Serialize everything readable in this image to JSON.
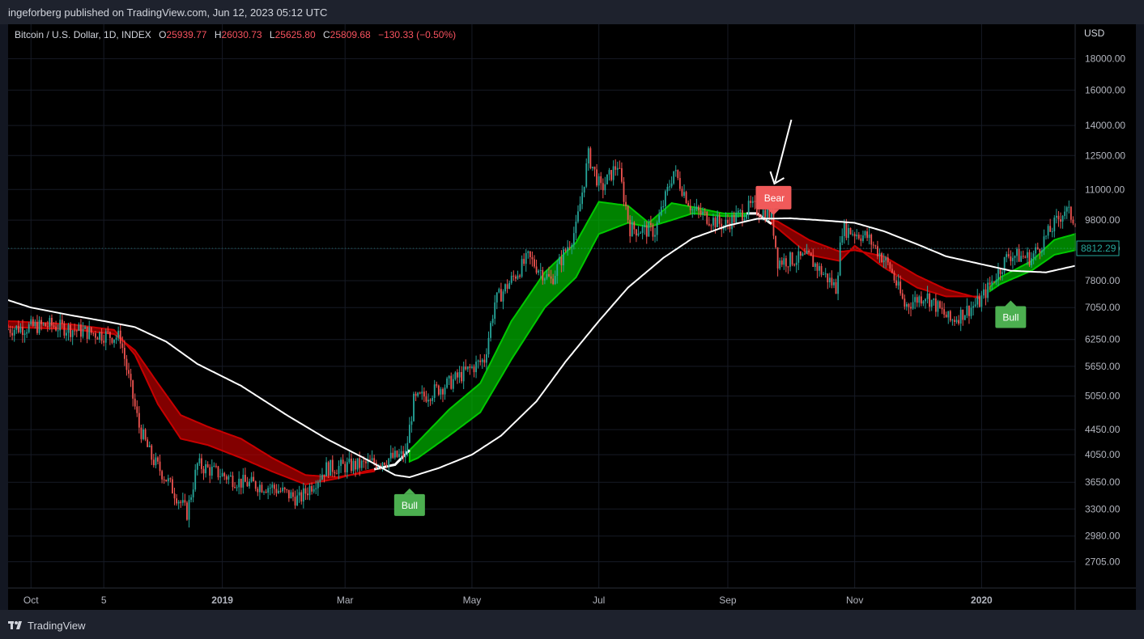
{
  "header": {
    "published": "ingeforberg published on TradingView.com, Jun 12, 2023 05:12 UTC"
  },
  "legend": {
    "symbol": "Bitcoin / U.S. Dollar, 1D, INDEX",
    "o_label": "O",
    "o_value": "25939.77",
    "h_label": "H",
    "h_value": "26030.73",
    "l_label": "L",
    "l_value": "25625.80",
    "c_label": "C",
    "c_value": "25809.68",
    "change": "−130.33 (−0.50%)"
  },
  "footer": {
    "brand": "TradingView"
  },
  "colors": {
    "background": "#000000",
    "up_candle": "#26a69a",
    "down_candle": "#ef5350",
    "bull_ribbon": "#00c800",
    "bear_ribbon": "#c80000",
    "slow_ma": "#ffffff",
    "bull_label": "#4caf50",
    "bear_label": "#f05a5a",
    "last_price": "#26a69a"
  },
  "chart_data": {
    "type": "candlestick",
    "currency": "USD",
    "y_scale": "log",
    "ylim": [
      2450,
      20500
    ],
    "y_ticks": [
      "18000.00",
      "16000.00",
      "14000.00",
      "12500.00",
      "11000.00",
      "9800.00",
      "8800.00",
      "7800.00",
      "7050.00",
      "6250.00",
      "5650.00",
      "5050.00",
      "4450.00",
      "4050.00",
      "3650.00",
      "3300.00",
      "2980.00",
      "2705.00"
    ],
    "x_range": [
      "2018-09-20",
      "2020-02-15"
    ],
    "x_ticks": [
      {
        "label": "Oct",
        "date": "2018-10-01",
        "bold": false
      },
      {
        "label": "5",
        "date": "2018-11-05",
        "bold": false
      },
      {
        "label": "2019",
        "date": "2019-01-01",
        "bold": true
      },
      {
        "label": "Mar",
        "date": "2019-03-01",
        "bold": false
      },
      {
        "label": "May",
        "date": "2019-05-01",
        "bold": false
      },
      {
        "label": "Jul",
        "date": "2019-07-01",
        "bold": false
      },
      {
        "label": "Sep",
        "date": "2019-09-01",
        "bold": false
      },
      {
        "label": "Nov",
        "date": "2019-11-01",
        "bold": false
      },
      {
        "label": "2020",
        "date": "2020-01-01",
        "bold": true
      }
    ],
    "price_path": [
      [
        "2018-09-20",
        6500
      ],
      [
        "2018-10-10",
        6600
      ],
      [
        "2018-10-25",
        6450
      ],
      [
        "2018-11-13",
        6300
      ],
      [
        "2018-11-16",
        5600
      ],
      [
        "2018-11-22",
        4500
      ],
      [
        "2018-11-28",
        4000
      ],
      [
        "2018-12-05",
        3700
      ],
      [
        "2018-12-15",
        3250
      ],
      [
        "2018-12-20",
        3900
      ],
      [
        "2018-12-28",
        3800
      ],
      [
        "2019-01-10",
        3650
      ],
      [
        "2019-01-25",
        3580
      ],
      [
        "2019-02-07",
        3420
      ],
      [
        "2019-02-20",
        3850
      ],
      [
        "2019-03-10",
        3900
      ],
      [
        "2019-03-30",
        4050
      ],
      [
        "2019-04-03",
        4950
      ],
      [
        "2019-04-20",
        5300
      ],
      [
        "2019-05-07",
        5800
      ],
      [
        "2019-05-12",
        7200
      ],
      [
        "2019-05-28",
        8500
      ],
      [
        "2019-06-08",
        7800
      ],
      [
        "2019-06-20",
        9500
      ],
      [
        "2019-06-26",
        12500
      ],
      [
        "2019-07-02",
        11000
      ],
      [
        "2019-07-10",
        12100
      ],
      [
        "2019-07-16",
        9500
      ],
      [
        "2019-07-28",
        9400
      ],
      [
        "2019-08-06",
        11800
      ],
      [
        "2019-08-15",
        10200
      ],
      [
        "2019-08-30",
        9600
      ],
      [
        "2019-09-12",
        10300
      ],
      [
        "2019-09-22",
        10000
      ],
      [
        "2019-09-25",
        8400
      ],
      [
        "2019-10-10",
        8500
      ],
      [
        "2019-10-23",
        7600
      ],
      [
        "2019-10-26",
        9500
      ],
      [
        "2019-11-07",
        9200
      ],
      [
        "2019-11-18",
        8200
      ],
      [
        "2019-11-25",
        7100
      ],
      [
        "2019-12-05",
        7400
      ],
      [
        "2019-12-17",
        6700
      ],
      [
        "2019-12-31",
        7200
      ],
      [
        "2020-01-14",
        8600
      ],
      [
        "2020-01-25",
        8500
      ],
      [
        "2020-02-10",
        10200
      ],
      [
        "2020-02-15",
        9800
      ]
    ],
    "slow_ma": [
      [
        "2018-09-20",
        7250
      ],
      [
        "2018-10-01",
        7050
      ],
      [
        "2018-10-20",
        6850
      ],
      [
        "2018-11-05",
        6700
      ],
      [
        "2018-11-20",
        6550
      ],
      [
        "2018-12-05",
        6200
      ],
      [
        "2018-12-20",
        5700
      ],
      [
        "2019-01-10",
        5250
      ],
      [
        "2019-02-01",
        4700
      ],
      [
        "2019-02-20",
        4300
      ],
      [
        "2019-03-10",
        4000
      ],
      [
        "2019-03-25",
        3750
      ],
      [
        "2019-04-01",
        3720
      ],
      [
        "2019-04-15",
        3850
      ],
      [
        "2019-05-01",
        4050
      ],
      [
        "2019-05-15",
        4350
      ],
      [
        "2019-06-01",
        4950
      ],
      [
        "2019-06-15",
        5750
      ],
      [
        "2019-07-01",
        6700
      ],
      [
        "2019-07-15",
        7600
      ],
      [
        "2019-08-01",
        8500
      ],
      [
        "2019-08-15",
        9150
      ],
      [
        "2019-09-01",
        9600
      ],
      [
        "2019-09-15",
        9850
      ],
      [
        "2019-10-01",
        9870
      ],
      [
        "2019-10-15",
        9800
      ],
      [
        "2019-11-01",
        9700
      ],
      [
        "2019-11-15",
        9400
      ],
      [
        "2019-12-01",
        8950
      ],
      [
        "2019-12-15",
        8550
      ],
      [
        "2020-01-01",
        8300
      ],
      [
        "2020-01-15",
        8100
      ],
      [
        "2020-02-01",
        8050
      ],
      [
        "2020-02-15",
        8250
      ]
    ],
    "ribbon_fast": [
      [
        "2018-09-20",
        6700
      ],
      [
        "2018-10-20",
        6620
      ],
      [
        "2018-11-10",
        6480
      ],
      [
        "2018-11-20",
        5900
      ],
      [
        "2018-12-01",
        4900
      ],
      [
        "2018-12-12",
        4300
      ],
      [
        "2018-12-25",
        4200
      ],
      [
        "2019-01-10",
        4000
      ],
      [
        "2019-01-25",
        3800
      ],
      [
        "2019-02-10",
        3620
      ],
      [
        "2019-02-25",
        3700
      ],
      [
        "2019-03-10",
        3800
      ],
      [
        "2019-03-25",
        3900
      ],
      [
        "2019-04-05",
        4250
      ],
      [
        "2019-04-20",
        4800
      ],
      [
        "2019-05-05",
        5300
      ],
      [
        "2019-05-20",
        6700
      ],
      [
        "2019-06-05",
        8050
      ],
      [
        "2019-06-20",
        9000
      ],
      [
        "2019-07-01",
        10500
      ],
      [
        "2019-07-15",
        10350
      ],
      [
        "2019-07-25",
        9700
      ],
      [
        "2019-08-05",
        10450
      ],
      [
        "2019-08-15",
        10300
      ],
      [
        "2019-08-30",
        10050
      ],
      [
        "2019-09-15",
        10050
      ],
      [
        "2019-09-25",
        9500
      ],
      [
        "2019-10-10",
        8600
      ],
      [
        "2019-10-25",
        8400
      ],
      [
        "2019-11-01",
        8900
      ],
      [
        "2019-11-15",
        8200
      ],
      [
        "2019-12-01",
        7600
      ],
      [
        "2019-12-15",
        7350
      ],
      [
        "2019-12-31",
        7350
      ],
      [
        "2020-01-10",
        7900
      ],
      [
        "2020-01-25",
        8400
      ],
      [
        "2020-02-05",
        9100
      ],
      [
        "2020-02-15",
        9300
      ]
    ],
    "ribbon_slow": [
      [
        "2018-09-20",
        6550
      ],
      [
        "2018-10-20",
        6500
      ],
      [
        "2018-11-10",
        6380
      ],
      [
        "2018-11-20",
        6000
      ],
      [
        "2018-12-01",
        5300
      ],
      [
        "2018-12-12",
        4700
      ],
      [
        "2018-12-25",
        4500
      ],
      [
        "2019-01-10",
        4300
      ],
      [
        "2019-01-25",
        4000
      ],
      [
        "2019-02-10",
        3750
      ],
      [
        "2019-02-25",
        3720
      ],
      [
        "2019-03-10",
        3780
      ],
      [
        "2019-03-25",
        3850
      ],
      [
        "2019-04-05",
        4000
      ],
      [
        "2019-04-20",
        4350
      ],
      [
        "2019-05-05",
        4750
      ],
      [
        "2019-05-20",
        5800
      ],
      [
        "2019-06-05",
        7050
      ],
      [
        "2019-06-20",
        7900
      ],
      [
        "2019-07-01",
        9300
      ],
      [
        "2019-07-15",
        9700
      ],
      [
        "2019-07-25",
        9550
      ],
      [
        "2019-08-05",
        9800
      ],
      [
        "2019-08-15",
        10050
      ],
      [
        "2019-08-30",
        9950
      ],
      [
        "2019-09-15",
        9950
      ],
      [
        "2019-09-25",
        9750
      ],
      [
        "2019-10-10",
        9100
      ],
      [
        "2019-10-25",
        8700
      ],
      [
        "2019-11-01",
        8750
      ],
      [
        "2019-11-15",
        8550
      ],
      [
        "2019-12-01",
        7950
      ],
      [
        "2019-12-15",
        7550
      ],
      [
        "2019-12-31",
        7300
      ],
      [
        "2020-01-10",
        7700
      ],
      [
        "2020-01-25",
        8100
      ],
      [
        "2020-02-05",
        8600
      ],
      [
        "2020-02-15",
        8750
      ]
    ],
    "bull_periods": [
      [
        "2019-04-01",
        "2019-09-10"
      ],
      [
        "2020-01-05",
        "2020-02-15"
      ]
    ],
    "bear_periods": [
      [
        "2018-09-20",
        "2019-03-15"
      ],
      [
        "2019-09-22",
        "2019-12-31"
      ]
    ],
    "signals": [
      {
        "label": "Bull",
        "date": "2019-04-01",
        "price": 3620,
        "type": "bull"
      },
      {
        "label": "Bear",
        "date": "2019-09-23",
        "price": 9900,
        "type": "bear"
      },
      {
        "label": "Bull",
        "date": "2020-01-15",
        "price": 7350,
        "type": "bull"
      }
    ],
    "last_price": {
      "value": 8812.29,
      "label": "8812.29"
    }
  }
}
